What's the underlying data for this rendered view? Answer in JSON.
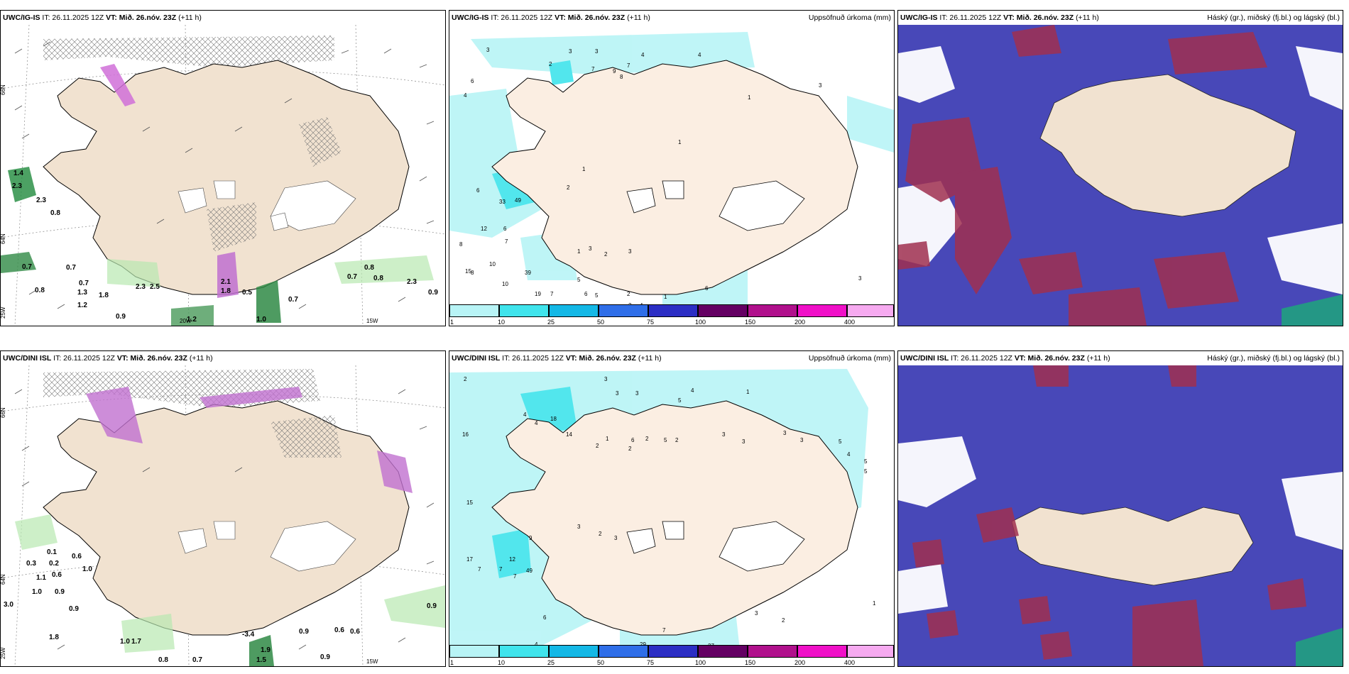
{
  "panels": {
    "p1": {
      "model": "UWC/IG-IS",
      "it": "IT: 26.11.2025 12Z",
      "vt": "VT: Mið. 26.nóv. 23Z",
      "lead": "(+11 h)",
      "title": ""
    },
    "p2": {
      "model": "UWC/IG-IS",
      "it": "IT: 26.11.2025 12Z",
      "vt": "VT: Mið. 26.nóv. 23Z",
      "lead": "(+11 h)",
      "title": "Uppsöfnuð úrkoma (mm)"
    },
    "p3": {
      "model": "UWC/IG-IS",
      "it": "IT: 26.11.2025 12Z",
      "vt": "VT: Mið. 26.nóv. 23Z",
      "lead": "(+11 h)",
      "title": "Háský (gr.), miðský (fj.bl.) og lágský (bl.)"
    },
    "p4": {
      "model": "UWC/DINI ISL",
      "it": "IT: 26.11.2025 12Z",
      "vt": "VT: Mið. 26.nóv. 23Z",
      "lead": "(+11 h)",
      "title": ""
    },
    "p5": {
      "model": "UWC/DINI ISL",
      "it": "IT: 26.11.2025 12Z",
      "vt": "VT: Mið. 26.nóv. 23Z",
      "lead": "(+11 h)",
      "title": "Uppsöfnuð úrkoma (mm)"
    },
    "p6": {
      "model": "UWC/DINI ISL",
      "it": "IT: 26.11.2025 12Z",
      "vt": "VT: Mið. 26.nóv. 23Z",
      "lead": "(+11 h)",
      "title": "Háský (gr.), miðský (fj.bl.) og lágský (bl.)"
    }
  },
  "axis_labels": {
    "lat66": "66N",
    "lat64": "64N",
    "lon25": "25W",
    "lon20": "20W",
    "lon15": "15W"
  },
  "legend": {
    "ticks": [
      "1",
      "10",
      "25",
      "50",
      "75",
      "100",
      "150",
      "200",
      "400"
    ],
    "colors": [
      "#b8f4f6",
      "#40e4ec",
      "#14b8e6",
      "#2f6ee8",
      "#2c2ec4",
      "#640063",
      "#b0108c",
      "#f010c8",
      "#f6aaf0"
    ]
  },
  "labels": {
    "p1": [
      "1.4",
      "2.3",
      "2.3",
      "0.8",
      "0.7",
      "0.7",
      "0.8",
      "0.7",
      "1.3",
      "1.2",
      "1.8",
      "0.9",
      "2.3",
      "2.5",
      "2.1",
      "1.8",
      "0.7",
      "1.2",
      "0.5",
      "1.0",
      "0.7",
      "0.8",
      "0.8",
      "2.3",
      "0.9"
    ],
    "p2": [
      "3",
      "6",
      "4",
      "2",
      "3",
      "3",
      "7",
      "9",
      "8",
      "4",
      "7",
      "4",
      "1",
      "3",
      "1",
      "2",
      "1",
      "6",
      "33",
      "49",
      "12",
      "6",
      "7",
      "8",
      "15",
      "8",
      "10",
      "10",
      "39",
      "19",
      "7",
      "5",
      "4",
      "6",
      "4",
      "1",
      "3",
      "2",
      "3",
      "2",
      "2",
      "1",
      "6",
      "5",
      "3"
    ],
    "p4": [
      "0.1",
      "0.3",
      "0.2",
      "0.6",
      "1.0",
      "1.1",
      "0.6",
      "1.0",
      "0.9",
      "3.0",
      "0.9",
      "1.8",
      "1.0",
      "1.7",
      "0.8",
      "0.7",
      "-3.4",
      "0.9",
      "0.6",
      "0.6",
      "0.9",
      "1.9",
      "1.5",
      "0.9"
    ],
    "p5": [
      "2",
      "3",
      "3",
      "3",
      "5",
      "4",
      "1",
      "16",
      "4",
      "18",
      "4",
      "14",
      "2",
      "1",
      "2",
      "6",
      "2",
      "5",
      "2",
      "3",
      "3",
      "3",
      "3",
      "5",
      "4",
      "5",
      "5",
      "15",
      "12",
      "49",
      "17",
      "7",
      "7",
      "7",
      "9",
      "3",
      "2",
      "3",
      "1",
      "27",
      "5",
      "8",
      "3",
      "2",
      "1",
      "29",
      "11",
      "8",
      "7",
      "6",
      "4"
    ]
  }
}
